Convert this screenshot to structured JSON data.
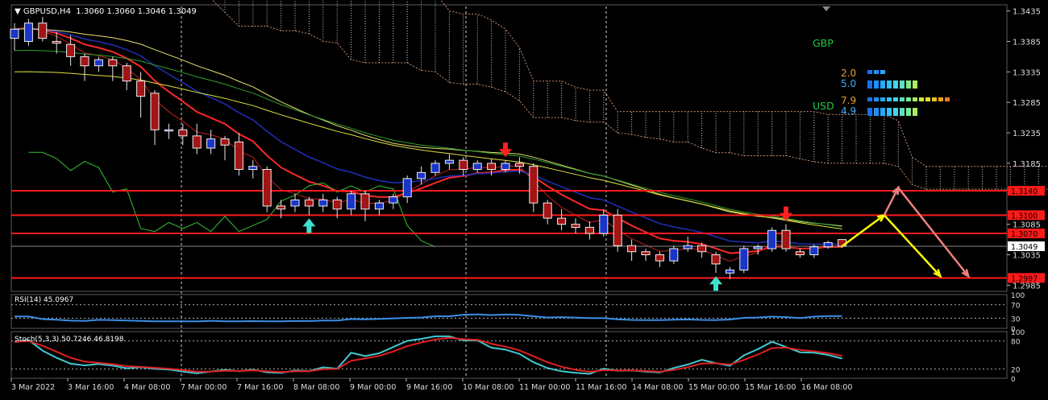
{
  "window": {
    "title": "GBPUSD,H4  1.3060 1.3060 1.3046 1.3049",
    "symbol": "GBPUSD,H4"
  },
  "chart_data": {
    "type": "candlestick",
    "price_axis": {
      "ticks": [
        "1.3435",
        "1.3385",
        "1.3335",
        "1.3285",
        "1.3235",
        "1.3185",
        "1.3085",
        "1.3035",
        "1.2985"
      ],
      "ylim": [
        1.2975,
        1.3445
      ]
    },
    "time_axis": {
      "labels": [
        "3 Mar 2022",
        "3 Mar 16:00",
        "4 Mar 08:00",
        "7 Mar 00:00",
        "7 Mar 16:00",
        "8 Mar 08:00",
        "9 Mar 00:00",
        "9 Mar 16:00",
        "10 Mar 08:00",
        "11 Mar 00:00",
        "11 Mar 16:00",
        "14 Mar 08:00",
        "15 Mar 00:00",
        "15 Mar 16:00",
        "16 Mar 08:00"
      ]
    },
    "price_labels": [
      {
        "value": 1.314,
        "text": "1.3140",
        "color": "#ff1a1a"
      },
      {
        "value": 1.31,
        "text": "1.3100",
        "color": "#ff1a1a"
      },
      {
        "value": 1.307,
        "text": "1.3070",
        "color": "#ff1a1a"
      },
      {
        "value": 1.3049,
        "text": "1.3049",
        "color": "#ffffff"
      },
      {
        "value": 1.2997,
        "text": "1.2997",
        "color": "#ff1a1a"
      }
    ],
    "horizontal_levels": [
      1.314,
      1.31,
      1.307,
      1.2997
    ],
    "current_price": 1.3049,
    "candles": [
      [
        1.339,
        1.3405,
        1.337,
        1.3415
      ],
      [
        1.3385,
        1.3415,
        1.3378,
        1.3422
      ],
      [
        1.3415,
        1.339,
        1.3385,
        1.3425
      ],
      [
        1.3385,
        1.3382,
        1.3365,
        1.34
      ],
      [
        1.338,
        1.336,
        1.3345,
        1.3395
      ],
      [
        1.336,
        1.3345,
        1.332,
        1.3365
      ],
      [
        1.3345,
        1.3355,
        1.3335,
        1.336
      ],
      [
        1.3355,
        1.3345,
        1.332,
        1.336
      ],
      [
        1.3345,
        1.332,
        1.3305,
        1.335
      ],
      [
        1.332,
        1.3295,
        1.326,
        1.3335
      ],
      [
        1.33,
        1.324,
        1.3215,
        1.3305
      ],
      [
        1.324,
        1.324,
        1.3225,
        1.325
      ],
      [
        1.324,
        1.323,
        1.3215,
        1.325
      ],
      [
        1.323,
        1.321,
        1.32,
        1.325
      ],
      [
        1.321,
        1.3225,
        1.32,
        1.324
      ],
      [
        1.3225,
        1.3215,
        1.319,
        1.323
      ],
      [
        1.322,
        1.3175,
        1.3165,
        1.3235
      ],
      [
        1.3175,
        1.318,
        1.316,
        1.319
      ],
      [
        1.3175,
        1.3115,
        1.3105,
        1.318
      ],
      [
        1.3115,
        1.311,
        1.3095,
        1.3125
      ],
      [
        1.3115,
        1.3125,
        1.3105,
        1.3135
      ],
      [
        1.3125,
        1.3115,
        1.31,
        1.313
      ],
      [
        1.3115,
        1.3125,
        1.3105,
        1.3135
      ],
      [
        1.3125,
        1.311,
        1.3095,
        1.313
      ],
      [
        1.311,
        1.3135,
        1.31,
        1.314
      ],
      [
        1.3135,
        1.311,
        1.309,
        1.314
      ],
      [
        1.311,
        1.312,
        1.31,
        1.3125
      ],
      [
        1.312,
        1.313,
        1.311,
        1.3135
      ],
      [
        1.313,
        1.316,
        1.312,
        1.3165
      ],
      [
        1.316,
        1.317,
        1.315,
        1.318
      ],
      [
        1.317,
        1.3185,
        1.3165,
        1.319
      ],
      [
        1.3185,
        1.319,
        1.3175,
        1.32
      ],
      [
        1.319,
        1.3175,
        1.3165,
        1.3195
      ],
      [
        1.3175,
        1.3185,
        1.317,
        1.319
      ],
      [
        1.3185,
        1.3175,
        1.3165,
        1.3192
      ],
      [
        1.3175,
        1.3185,
        1.317,
        1.319
      ],
      [
        1.3185,
        1.318,
        1.3168,
        1.3195
      ],
      [
        1.318,
        1.312,
        1.3105,
        1.3185
      ],
      [
        1.312,
        1.3095,
        1.3085,
        1.3125
      ],
      [
        1.3095,
        1.3085,
        1.3075,
        1.311
      ],
      [
        1.3085,
        1.308,
        1.307,
        1.3095
      ],
      [
        1.308,
        1.307,
        1.306,
        1.309
      ],
      [
        1.307,
        1.31,
        1.3065,
        1.311
      ],
      [
        1.31,
        1.305,
        1.304,
        1.311
      ],
      [
        1.305,
        1.304,
        1.3025,
        1.306
      ],
      [
        1.304,
        1.3035,
        1.3025,
        1.3045
      ],
      [
        1.3035,
        1.3025,
        1.3015,
        1.304
      ],
      [
        1.3025,
        1.3045,
        1.302,
        1.305
      ],
      [
        1.3045,
        1.305,
        1.304,
        1.3065
      ],
      [
        1.305,
        1.304,
        1.303,
        1.3055
      ],
      [
        1.3035,
        1.302,
        1.3005,
        1.304
      ],
      [
        1.3005,
        1.301,
        1.2995,
        1.3015
      ],
      [
        1.301,
        1.3045,
        1.3005,
        1.305
      ],
      [
        1.3045,
        1.3048,
        1.3035,
        1.3052
      ],
      [
        1.3045,
        1.3075,
        1.304,
        1.308
      ],
      [
        1.3075,
        1.3045,
        1.304,
        1.3085
      ],
      [
        1.304,
        1.3035,
        1.303,
        1.3045
      ],
      [
        1.3035,
        1.3048,
        1.303,
        1.3052
      ],
      [
        1.3048,
        1.3055,
        1.3045,
        1.3058
      ],
      [
        1.306,
        1.3049,
        1.3046,
        1.306
      ]
    ],
    "forecast_paths": [
      {
        "color": "#ffff00",
        "points": [
          [
            59,
            1.3049
          ],
          [
            62,
            1.31
          ],
          [
            66,
            1.3
          ]
        ]
      },
      {
        "color": "#f08080",
        "points": [
          [
            62,
            1.31
          ],
          [
            63,
            1.3145
          ],
          [
            68,
            1.3
          ]
        ]
      }
    ],
    "signals": [
      {
        "index": 21,
        "direction": "up",
        "color": "#40e0d0"
      },
      {
        "index": 35,
        "direction": "down",
        "color": "#ff2020"
      },
      {
        "index": 50,
        "direction": "up",
        "color": "#40e0d0"
      },
      {
        "index": 55,
        "direction": "down",
        "color": "#ff2020"
      }
    ],
    "strength_meter": [
      {
        "currency": "GBP",
        "values": [
          "2.0",
          "5.0"
        ]
      },
      {
        "currency": "USD",
        "values": [
          "7.9",
          "4.9"
        ]
      }
    ],
    "rsi": {
      "label": "RSI(14) 45.0967",
      "levels": [
        "100",
        "70",
        "30",
        "0"
      ]
    },
    "stoch": {
      "label": "Stoch(5,3,3) 50.7246 46.8198",
      "levels": [
        "100",
        "80",
        "20",
        "0"
      ]
    }
  }
}
